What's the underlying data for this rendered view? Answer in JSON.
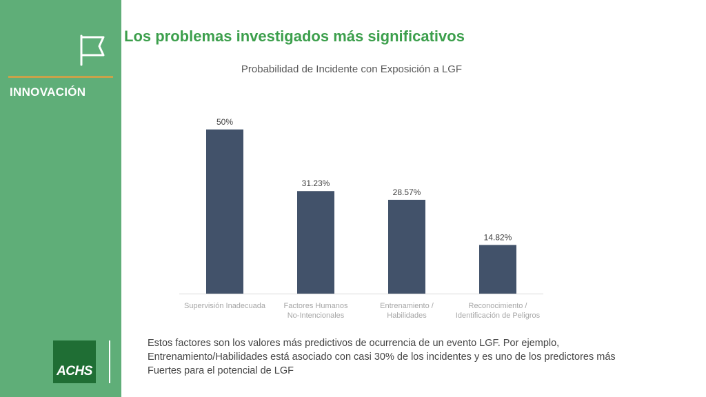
{
  "sidebar": {
    "section_label": "INNOVACIÓN",
    "logo_text": "ACHS",
    "icon": "flag-icon"
  },
  "page": {
    "title": "Los problemas investigados más significativos",
    "description": "Estos factores son los valores más predictivos de ocurrencia de un evento LGF. Por ejemplo, Entrenamiento/Habilidades está asociado con casi 30% de los incidentes y es uno de los predictores más Fuertes para el potencial de LGF"
  },
  "colors": {
    "sidebar": "#5fae78",
    "accent_rule": "#c9a24a",
    "title": "#3c9f4c",
    "bar": "#42526a",
    "logo": "#1f6e34"
  },
  "chart_data": {
    "type": "bar",
    "title": "Probabilidad de Incidente con Exposición a LGF",
    "categories": [
      [
        "Supervisión Inadecuada"
      ],
      [
        "Factores Humanos",
        "No-Intencionales"
      ],
      [
        "Entrenamiento /",
        "Habilidades"
      ],
      [
        "Reconocimiento /",
        "Identificación de Peligros"
      ]
    ],
    "values": [
      50,
      31.23,
      28.57,
      14.82
    ],
    "data_labels": [
      "50%",
      "31.23%",
      "28.57%",
      "14.82%"
    ],
    "ylim": [
      0,
      55
    ],
    "grid": false,
    "legend": "none"
  }
}
